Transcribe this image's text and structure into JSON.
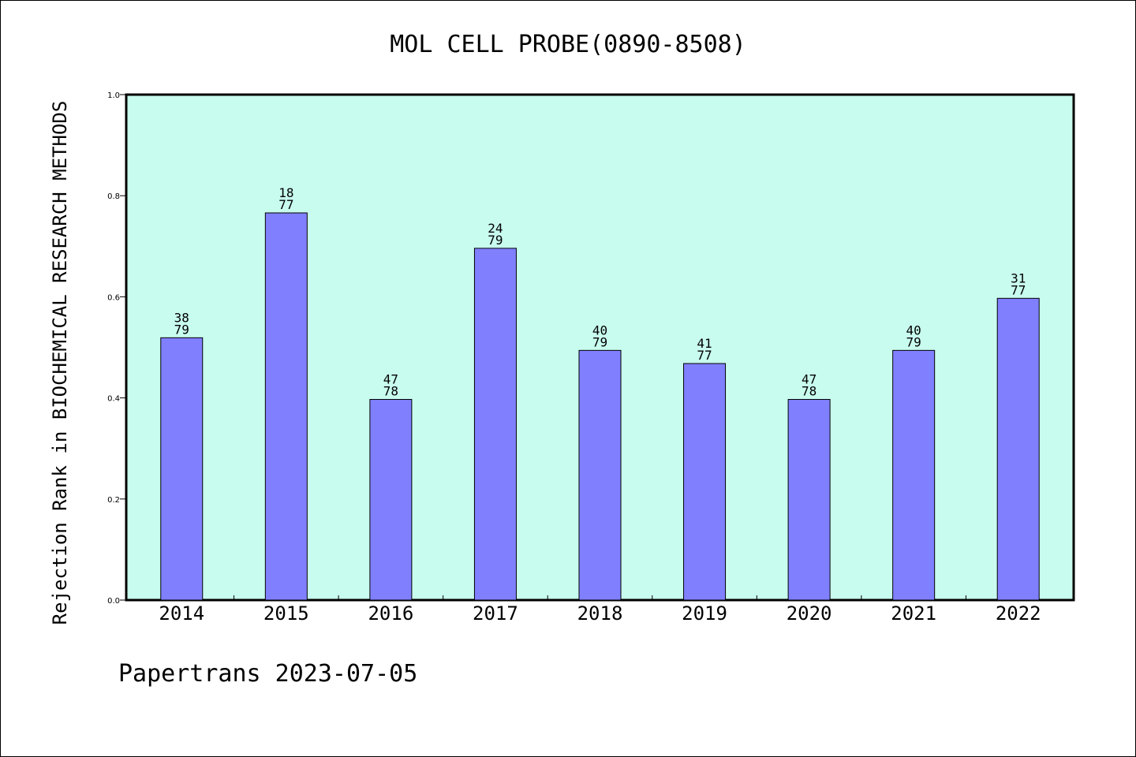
{
  "chart_data": {
    "type": "bar",
    "title": "MOL CELL PROBE(0890-8508)",
    "ylabel": "Rejection Rank in BIOCHEMICAL RESEARCH METHODS",
    "xlabel": "",
    "ylim": [
      0,
      1.0
    ],
    "yticks": [
      "0.0",
      "0.2",
      "0.4",
      "0.6",
      "0.8",
      "1.0"
    ],
    "categories": [
      "2014",
      "2015",
      "2016",
      "2017",
      "2018",
      "2019",
      "2020",
      "2021",
      "2022"
    ],
    "values": [
      0.519,
      0.766,
      0.397,
      0.696,
      0.494,
      0.468,
      0.397,
      0.494,
      0.597
    ],
    "bar_labels": [
      [
        "38",
        "79"
      ],
      [
        "18",
        "77"
      ],
      [
        "47",
        "78"
      ],
      [
        "24",
        "79"
      ],
      [
        "40",
        "79"
      ],
      [
        "41",
        "77"
      ],
      [
        "47",
        "78"
      ],
      [
        "40",
        "79"
      ],
      [
        "31",
        "77"
      ]
    ],
    "grid": false,
    "colors": {
      "plot_background": "#c8fcee",
      "bar": "#8080ff"
    }
  },
  "footer": "Papertrans 2023-07-05"
}
